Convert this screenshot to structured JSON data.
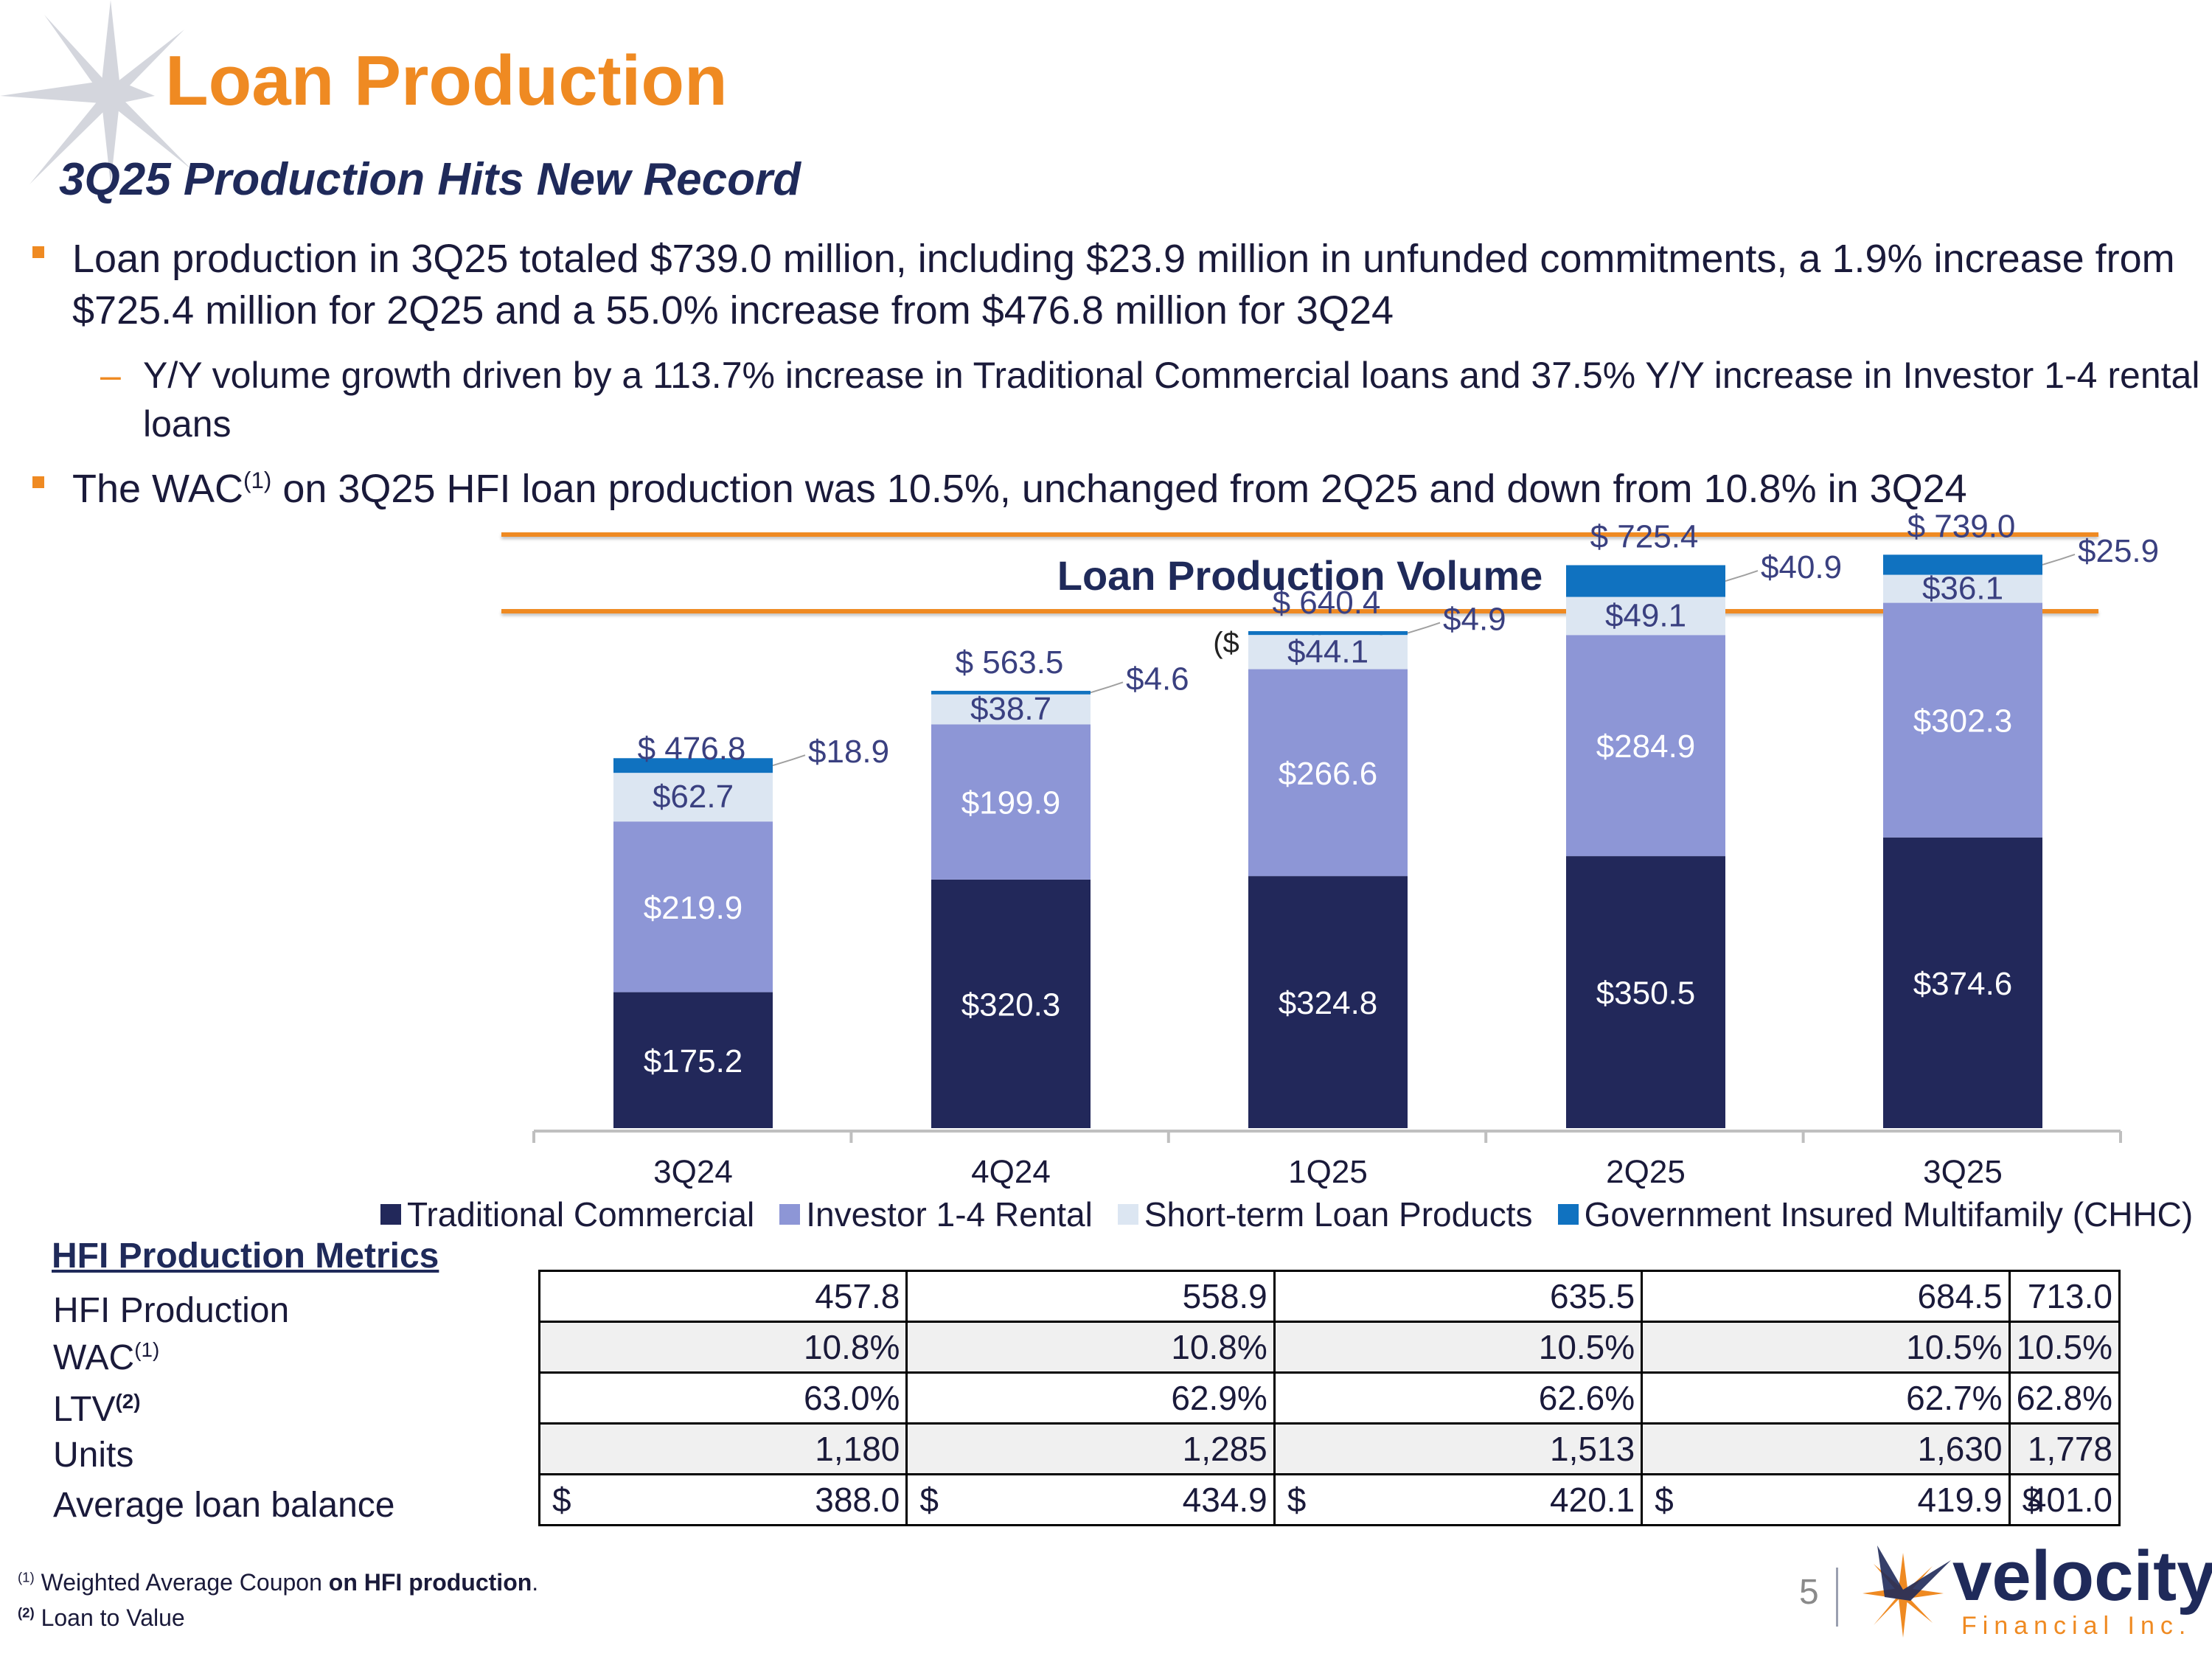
{
  "title": "Loan Production",
  "subtitle": "3Q25 Production Hits New Record",
  "bullets": [
    "Loan production in 3Q25 totaled $739.0 million, including $23.9 million in unfunded commitments, a 1.9% increase from $725.4 million for 2Q25 and a 55.0% increase from $476.8 million for 3Q24"
  ],
  "sub_bullet": "Y/Y volume growth driven by a 113.7% increase in Traditional Commercial loans and 37.5% Y/Y increase in Investor 1-4 rental loans",
  "bullet2": {
    "pre": "The WAC",
    "sup": "(1)",
    "post": " on 3Q25 HFI loan production was 10.5%, unchanged from 2Q25 and down from 10.8% in 3Q24"
  },
  "chart_title": "Loan Production Volume",
  "chart_subtitle": "($ in millions)",
  "chart_data": {
    "type": "bar",
    "stacked": true,
    "categories": [
      "3Q24",
      "4Q24",
      "1Q25",
      "2Q25",
      "3Q25"
    ],
    "series": [
      {
        "name": "Traditional Commercial",
        "values": [
          175.2,
          320.3,
          324.8,
          350.5,
          374.6
        ],
        "labels": [
          "$175.2",
          "$320.3",
          "$324.8",
          "$350.5",
          "$374.6"
        ],
        "color": "#22285a"
      },
      {
        "name": "Investor 1-4 Rental",
        "values": [
          219.9,
          199.9,
          266.6,
          284.9,
          302.3
        ],
        "labels": [
          "$219.9",
          "$199.9",
          "$266.6",
          "$284.9",
          "$302.3"
        ],
        "color": "#8d96d6"
      },
      {
        "name": "Short-term Loan Products",
        "values": [
          62.7,
          38.7,
          44.1,
          49.1,
          36.1
        ],
        "labels": [
          "$62.7",
          "$38.7",
          "$44.1",
          "$49.1",
          "$36.1"
        ],
        "color": "#dce6f2"
      },
      {
        "name": "Government Insured Multifamily (CHHC)",
        "values": [
          18.9,
          4.6,
          4.9,
          40.9,
          25.9
        ],
        "labels": [
          "$18.9",
          "$4.6",
          "$4.9",
          "$40.9",
          "$25.9"
        ],
        "color": "#1072c0"
      }
    ],
    "totals": [
      "$ 476.8",
      "$ 563.5",
      "$ 640.4",
      "$ 725.4",
      "$ 739.0"
    ],
    "legend_position": "bottom",
    "grid": false
  },
  "metrics": {
    "title": "HFI Production Metrics",
    "rows": [
      {
        "label": "HFI Production",
        "sup": "",
        "values": [
          "457.8",
          "558.9",
          "635.5",
          "684.5",
          "713.0"
        ],
        "dollar": false
      },
      {
        "label": "WAC",
        "sup": "(1)",
        "values": [
          "10.8%",
          "10.8%",
          "10.5%",
          "10.5%",
          "10.5%"
        ],
        "dollar": false
      },
      {
        "label": "LTV",
        "sup": "(2)",
        "values": [
          "63.0%",
          "62.9%",
          "62.6%",
          "62.7%",
          "62.8%"
        ],
        "dollar": false
      },
      {
        "label": "Units",
        "sup": "",
        "values": [
          "1,180",
          "1,285",
          "1,513",
          "1,630",
          "1,778"
        ],
        "dollar": false
      },
      {
        "label": "Average loan balance",
        "sup": "",
        "values": [
          "388.0",
          "434.9",
          "420.1",
          "419.9",
          "401.0"
        ],
        "dollar": true,
        "dollar_sign": "$"
      }
    ]
  },
  "footnotes": [
    {
      "sup": "(1)",
      "text": " Weighted Average Coupon",
      "bold": " on HFI production",
      "end": "."
    },
    {
      "sup": "(2)",
      "text": " Loan to Value",
      "bold": "",
      "end": ""
    }
  ],
  "page_number": "5",
  "logo": {
    "word": "velocity",
    "sub": "Financial Inc."
  }
}
